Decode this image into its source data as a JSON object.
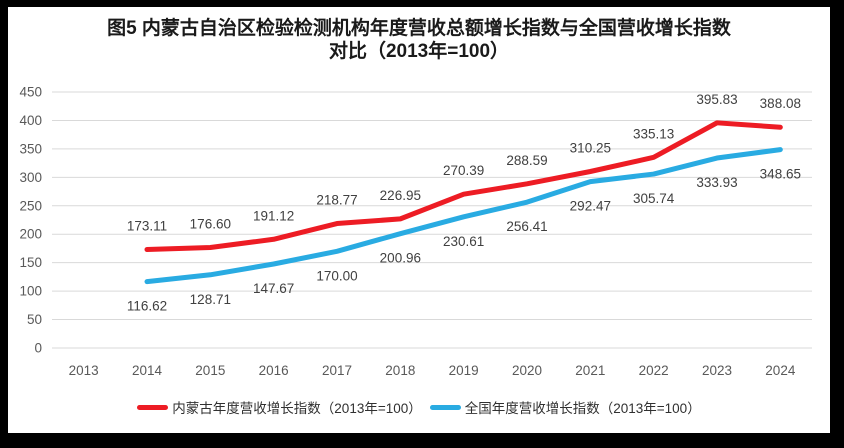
{
  "chart_data": {
    "type": "line",
    "title": "图5  内蒙古自治区检验检测机构年度营收总额增长指数与全国营收增长指数对比（2013年=100）",
    "title_line1": "图5  内蒙古自治区检验检测机构年度营收总额增长指数与全国营收增长指数",
    "title_line2": "对比（2013年=100）",
    "categories": [
      "2013",
      "2014",
      "2015",
      "2016",
      "2017",
      "2018",
      "2019",
      "2020",
      "2021",
      "2022",
      "2023",
      "2024"
    ],
    "series": [
      {
        "name": "内蒙古年度营收增长指数（2013年=100）",
        "color": "#ED1C24",
        "label_position": "above",
        "values": [
          null,
          173.11,
          176.6,
          191.12,
          218.77,
          226.95,
          270.39,
          288.59,
          310.25,
          335.13,
          395.83,
          388.08
        ]
      },
      {
        "name": "全国年度营收增长指数（2013年=100）",
        "color": "#29ABE2",
        "label_position": "below",
        "values": [
          null,
          116.62,
          128.71,
          147.67,
          170.0,
          200.96,
          230.61,
          256.41,
          292.47,
          305.74,
          333.93,
          348.65
        ]
      }
    ],
    "xlabel": "",
    "ylabel": "",
    "ylim": [
      0,
      450
    ],
    "ytick_interval": 50,
    "grid": true,
    "legend_position": "bottom",
    "data_label_decimals": 2,
    "colors": {
      "grid": "#D9D9D9",
      "axis_text": "#595959",
      "data_label_text": "#404040",
      "title_text": "#1A1A1A",
      "plot_background": "#FFFFFF",
      "frame_border": "#000000"
    }
  }
}
